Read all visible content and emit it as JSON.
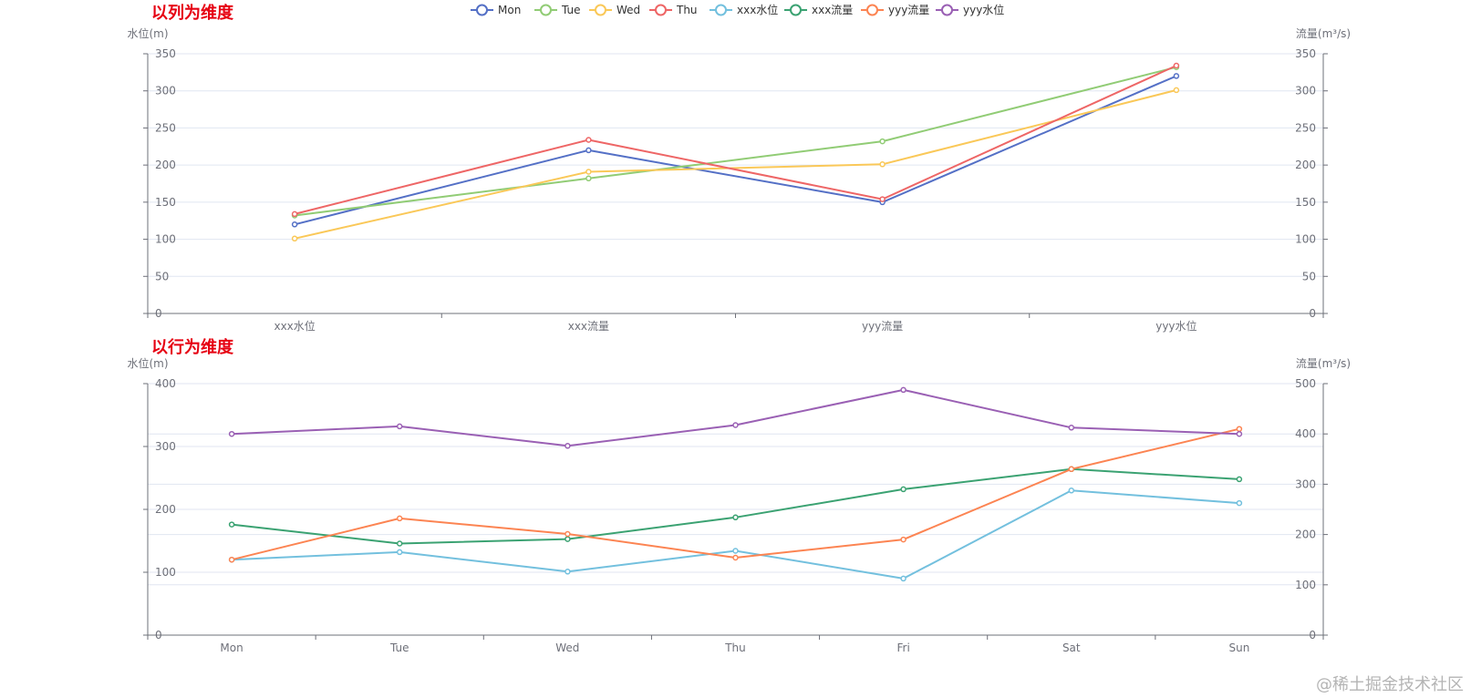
{
  "watermark": "@稀土掘金技术社区",
  "title_color": "#e60012",
  "legend": [
    {
      "name": "Mon",
      "color": "#5470c6"
    },
    {
      "name": "Tue",
      "color": "#91cc75"
    },
    {
      "name": "Wed",
      "color": "#fac858"
    },
    {
      "name": "Thu",
      "color": "#ee6666"
    },
    {
      "name": "xxx水位",
      "color": "#73c0de"
    },
    {
      "name": "xxx流量",
      "color": "#3ba272"
    },
    {
      "name": "yyy流量",
      "color": "#fc8452"
    },
    {
      "name": "yyy水位",
      "color": "#9a60b4"
    }
  ],
  "chart_data": [
    {
      "type": "line",
      "title": "以列为维度",
      "categories": [
        "xxx水位",
        "xxx流量",
        "yyy流量",
        "yyy水位"
      ],
      "y_left": {
        "label": "水位(m)",
        "min": 0,
        "max": 350,
        "ticks": [
          0,
          50,
          100,
          150,
          200,
          250,
          300,
          350
        ]
      },
      "y_right": {
        "label": "流量(m³/s)",
        "min": 0,
        "max": 350,
        "ticks": [
          0,
          50,
          100,
          150,
          200,
          250,
          300,
          350
        ]
      },
      "series": [
        {
          "name": "Mon",
          "color": "#5470c6",
          "values": [
            120,
            220,
            150,
            320
          ]
        },
        {
          "name": "Tue",
          "color": "#91cc75",
          "values": [
            132,
            182,
            232,
            332
          ]
        },
        {
          "name": "Wed",
          "color": "#fac858",
          "values": [
            101,
            191,
            201,
            301
          ]
        },
        {
          "name": "Thu",
          "color": "#ee6666",
          "values": [
            134,
            234,
            154,
            334
          ]
        }
      ]
    },
    {
      "type": "line",
      "title": "以行为维度",
      "categories": [
        "Mon",
        "Tue",
        "Wed",
        "Thu",
        "Fri",
        "Sat",
        "Sun"
      ],
      "y_left": {
        "label": "水位(m)",
        "min": 0,
        "max": 400,
        "ticks": [
          0,
          100,
          200,
          300,
          400
        ]
      },
      "y_right": {
        "label": "流量(m³/s)",
        "min": 0,
        "max": 500,
        "ticks": [
          0,
          100,
          200,
          300,
          400,
          500
        ]
      },
      "series": [
        {
          "name": "xxx水位",
          "color": "#73c0de",
          "axis": "left",
          "values": [
            120,
            132,
            101,
            134,
            90,
            230,
            210
          ]
        },
        {
          "name": "xxx流量",
          "color": "#3ba272",
          "axis": "right",
          "values": [
            220,
            182,
            191,
            234,
            290,
            330,
            310
          ]
        },
        {
          "name": "yyy流量",
          "color": "#fc8452",
          "axis": "right",
          "values": [
            150,
            232,
            201,
            154,
            190,
            330,
            410
          ]
        },
        {
          "name": "yyy水位",
          "color": "#9a60b4",
          "axis": "left",
          "values": [
            320,
            332,
            301,
            334,
            390,
            330,
            320
          ]
        }
      ]
    }
  ]
}
